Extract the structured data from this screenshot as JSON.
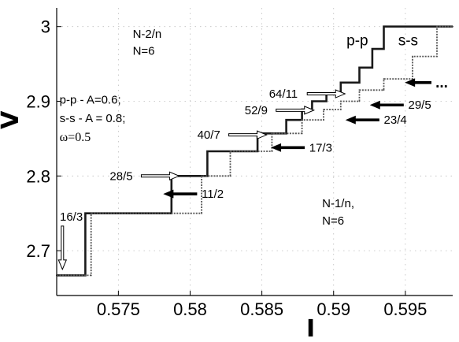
{
  "chart_data": {
    "type": "line",
    "xlabel": "I",
    "ylabel": "V",
    "xlim": [
      0.5707,
      0.5983
    ],
    "ylim": [
      2.64,
      3.025
    ],
    "xticks": [
      0.575,
      0.58,
      0.585,
      0.59,
      0.595
    ],
    "xtick_labels": [
      "0.575",
      "0.58",
      "0.585",
      "0.59",
      "0.595"
    ],
    "yticks": [
      2.7,
      2.8,
      2.9,
      3.0
    ],
    "ytick_labels": [
      "2.7",
      "2.8",
      "2.9",
      "3"
    ],
    "grid": true,
    "series": [
      {
        "name": "p-p",
        "color": "#1a1a1a",
        "x": [
          0.5707,
          0.5727,
          0.5727,
          0.5787,
          0.5787,
          0.5812,
          0.5812,
          0.5847,
          0.5847,
          0.5867,
          0.5867,
          0.5878,
          0.5878,
          0.5885,
          0.5885,
          0.5895,
          0.5895,
          0.5905,
          0.5905,
          0.5918,
          0.5918,
          0.5927,
          0.5927,
          0.5935,
          0.5935,
          0.5983
        ],
        "y": [
          2.667,
          2.667,
          2.75,
          2.75,
          2.8,
          2.8,
          2.833,
          2.833,
          2.857,
          2.857,
          2.875,
          2.875,
          2.889,
          2.889,
          2.9,
          2.9,
          2.91,
          2.91,
          2.925,
          2.925,
          2.945,
          2.945,
          2.97,
          2.97,
          3.0,
          3.0
        ]
      },
      {
        "name": "s-s",
        "color": "#555555",
        "x": [
          0.5707,
          0.5731,
          0.5731,
          0.5808,
          0.5808,
          0.5828,
          0.5828,
          0.5857,
          0.5857,
          0.5878,
          0.5878,
          0.5893,
          0.5893,
          0.5905,
          0.5905,
          0.5918,
          0.5918,
          0.5935,
          0.5935,
          0.5955,
          0.5955,
          0.5972,
          0.5972,
          0.5983
        ],
        "y": [
          2.667,
          2.667,
          2.75,
          2.75,
          2.8,
          2.8,
          2.833,
          2.833,
          2.857,
          2.857,
          2.875,
          2.875,
          2.889,
          2.889,
          2.9,
          2.9,
          2.915,
          2.915,
          2.93,
          2.93,
          2.96,
          2.96,
          3.0,
          3.0
        ]
      }
    ],
    "annotations": [
      {
        "text": "N-2/n",
        "x": 0.576,
        "y": 2.985
      },
      {
        "text": "N=6",
        "x": 0.576,
        "y": 2.962
      },
      {
        "text": "p-p - A=0.6;",
        "x": 0.5709,
        "y": 2.897
      },
      {
        "text": "s-s - A = 0.8;",
        "x": 0.5709,
        "y": 2.872
      },
      {
        "text": "ω=0.5",
        "x": 0.5709,
        "y": 2.847
      },
      {
        "text": "N-1/n,",
        "x": 0.5892,
        "y": 2.758
      },
      {
        "text": "N=6",
        "x": 0.5892,
        "y": 2.735
      }
    ],
    "curve_labels": [
      {
        "text": "p-p",
        "x": 0.5909,
        "y": 2.975
      },
      {
        "text": "s-s",
        "x": 0.5945,
        "y": 2.975
      }
    ],
    "arrow_labels_open": [
      {
        "text": "64/11",
        "x": 0.5855,
        "y": 2.91
      },
      {
        "text": "52/9",
        "x": 0.5838,
        "y": 2.888
      },
      {
        "text": "40/7",
        "x": 0.5805,
        "y": 2.855
      },
      {
        "text": "28/5",
        "x": 0.5744,
        "y": 2.8
      },
      {
        "text": "16/3",
        "x": 0.5707,
        "y": 2.753
      }
    ],
    "arrow_labels_filled": [
      {
        "text": "29/5",
        "x": 0.5952,
        "y": 2.895
      },
      {
        "text": "23/4",
        "x": 0.5935,
        "y": 2.875
      },
      {
        "text": "17/3",
        "x": 0.5883,
        "y": 2.838
      },
      {
        "text": "11/2",
        "x": 0.5808,
        "y": 2.776
      }
    ],
    "ellipsis_label": "..."
  }
}
